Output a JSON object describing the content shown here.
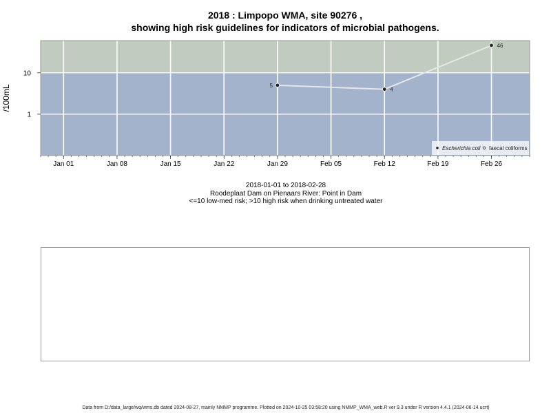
{
  "chart_data": {
    "type": "line",
    "title": "2018 : Limpopo WMA, site 90276 ,",
    "subtitle": "showing high risk guidelines for indicators of microbial pathogens.",
    "ylabel": "/100mL",
    "yscale": "log",
    "y_ticks": [
      1,
      10
    ],
    "y_tick_labels": [
      "1",
      "10"
    ],
    "ylim": [
      0.1,
      60
    ],
    "xlim": [
      "2017-12-29",
      "2018-03-03"
    ],
    "x_ticks": [
      "2018-01-01",
      "2018-01-08",
      "2018-01-15",
      "2018-01-22",
      "2018-01-29",
      "2018-02-05",
      "2018-02-12",
      "2018-02-19",
      "2018-02-26"
    ],
    "x_tick_labels": [
      "Jan 01",
      "Jan 08",
      "Jan 15",
      "Jan 22",
      "Jan 29",
      "Feb 05",
      "Feb 12",
      "Feb 19",
      "Feb 26"
    ],
    "guideline_threshold": 10,
    "zone_colors": {
      "high": "#c1cbbf",
      "low": "#a3b3cb"
    },
    "series_color": "#e6e6e6",
    "grid": true,
    "legend_position": "bottom-right",
    "series": [
      {
        "name": "Escherichia coli",
        "marker": "filled",
        "points": [
          {
            "x": "2018-01-29",
            "y": 5,
            "label": "5"
          },
          {
            "x": "2018-02-12",
            "y": 4,
            "label": "4"
          },
          {
            "x": "2018-02-26",
            "y": 46,
            "label": "46"
          }
        ]
      },
      {
        "name": "faecal coliforms",
        "marker": "open",
        "points": []
      }
    ]
  },
  "captions": {
    "period": "2018-01-01 to 2018-02-28",
    "location": "Roodeplaat Dam on Pienaars River: Point in Dam",
    "risk": "<=10 low-med risk; >10 high risk when drinking untreated water"
  },
  "footer": "Data from D:/data_large/wq/wms.db dated 2024-08-27, mainly NMMP programme. Plotted on 2024-10-25 03:58:20 using NMMP_WMA_web.R ver 9.3 under R version 4.4.1 (2024-06-14 ucrt)"
}
